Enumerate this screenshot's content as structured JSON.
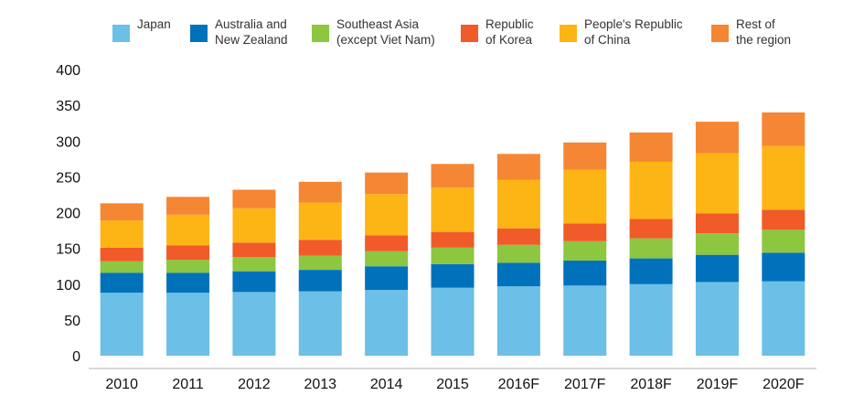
{
  "chart_data": {
    "type": "bar",
    "stacked": true,
    "title": "",
    "xlabel": "",
    "ylabel": "",
    "categories": [
      "2010",
      "2011",
      "2012",
      "2013",
      "2014",
      "2015",
      "2016F",
      "2017F",
      "2018F",
      "2019F",
      "2020F"
    ],
    "ylim": [
      0,
      400
    ],
    "yticks": [
      0,
      50,
      100,
      150,
      200,
      250,
      300,
      350,
      400
    ],
    "grid": false,
    "legend_position": "top",
    "series": [
      {
        "name": "Japan",
        "color": "#6CBFE6",
        "values": [
          88,
          88,
          89,
          90,
          92,
          95,
          97,
          98,
          100,
          103,
          104
        ]
      },
      {
        "name": "Australia and\nNew Zealand",
        "color": "#0072BC",
        "values": [
          28,
          28,
          29,
          30,
          33,
          33,
          33,
          35,
          36,
          38,
          40
        ]
      },
      {
        "name": "Southeast Asia\n(except Viet Nam)",
        "color": "#8DC63F",
        "values": [
          16,
          18,
          20,
          20,
          21,
          23,
          25,
          27,
          28,
          30,
          32
        ]
      },
      {
        "name": "Republic\nof Korea",
        "color": "#F15A29",
        "values": [
          19,
          20,
          20,
          22,
          22,
          22,
          23,
          25,
          27,
          28,
          28
        ]
      },
      {
        "name": "People's Republic\nof China",
        "color": "#FDB515",
        "values": [
          38,
          43,
          48,
          52,
          58,
          62,
          68,
          75,
          80,
          84,
          89
        ]
      },
      {
        "name": "Rest of\nthe region",
        "color": "#F58634",
        "values": [
          24,
          25,
          26,
          29,
          30,
          33,
          36,
          38,
          41,
          44,
          47
        ]
      }
    ]
  }
}
